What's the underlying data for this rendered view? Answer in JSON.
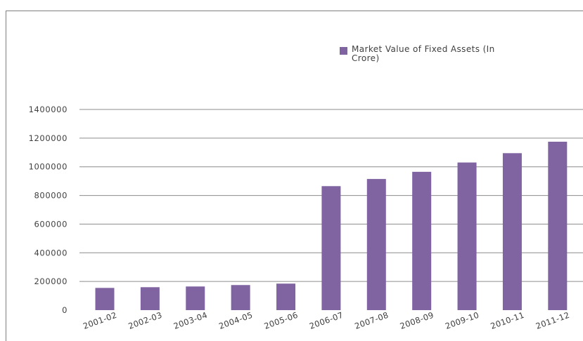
{
  "chart_data": {
    "type": "bar",
    "categories": [
      "2001-02",
      "2002-03",
      "2003-04",
      "2004-05",
      "2005-06",
      "2006-07",
      "2007-08",
      "2008-09",
      "2009-10",
      "2010-11",
      "2011-12"
    ],
    "series": [
      {
        "name": "Market Value of Fixed Assets (In Crore)",
        "color": "#8064a2",
        "values": [
          155000,
          160000,
          165000,
          175000,
          185000,
          865000,
          915000,
          965000,
          1030000,
          1095000,
          1175000
        ]
      }
    ],
    "y_ticks": [
      "0",
      "200000",
      "400000",
      "600000",
      "800000",
      "1000000",
      "1200000",
      "1400000"
    ],
    "ylim": [
      0,
      1400000
    ],
    "grid": true,
    "legend_position": "top-right",
    "legend_line1": "Market Value of Fixed Assets (In",
    "legend_line2": "Crore)"
  }
}
